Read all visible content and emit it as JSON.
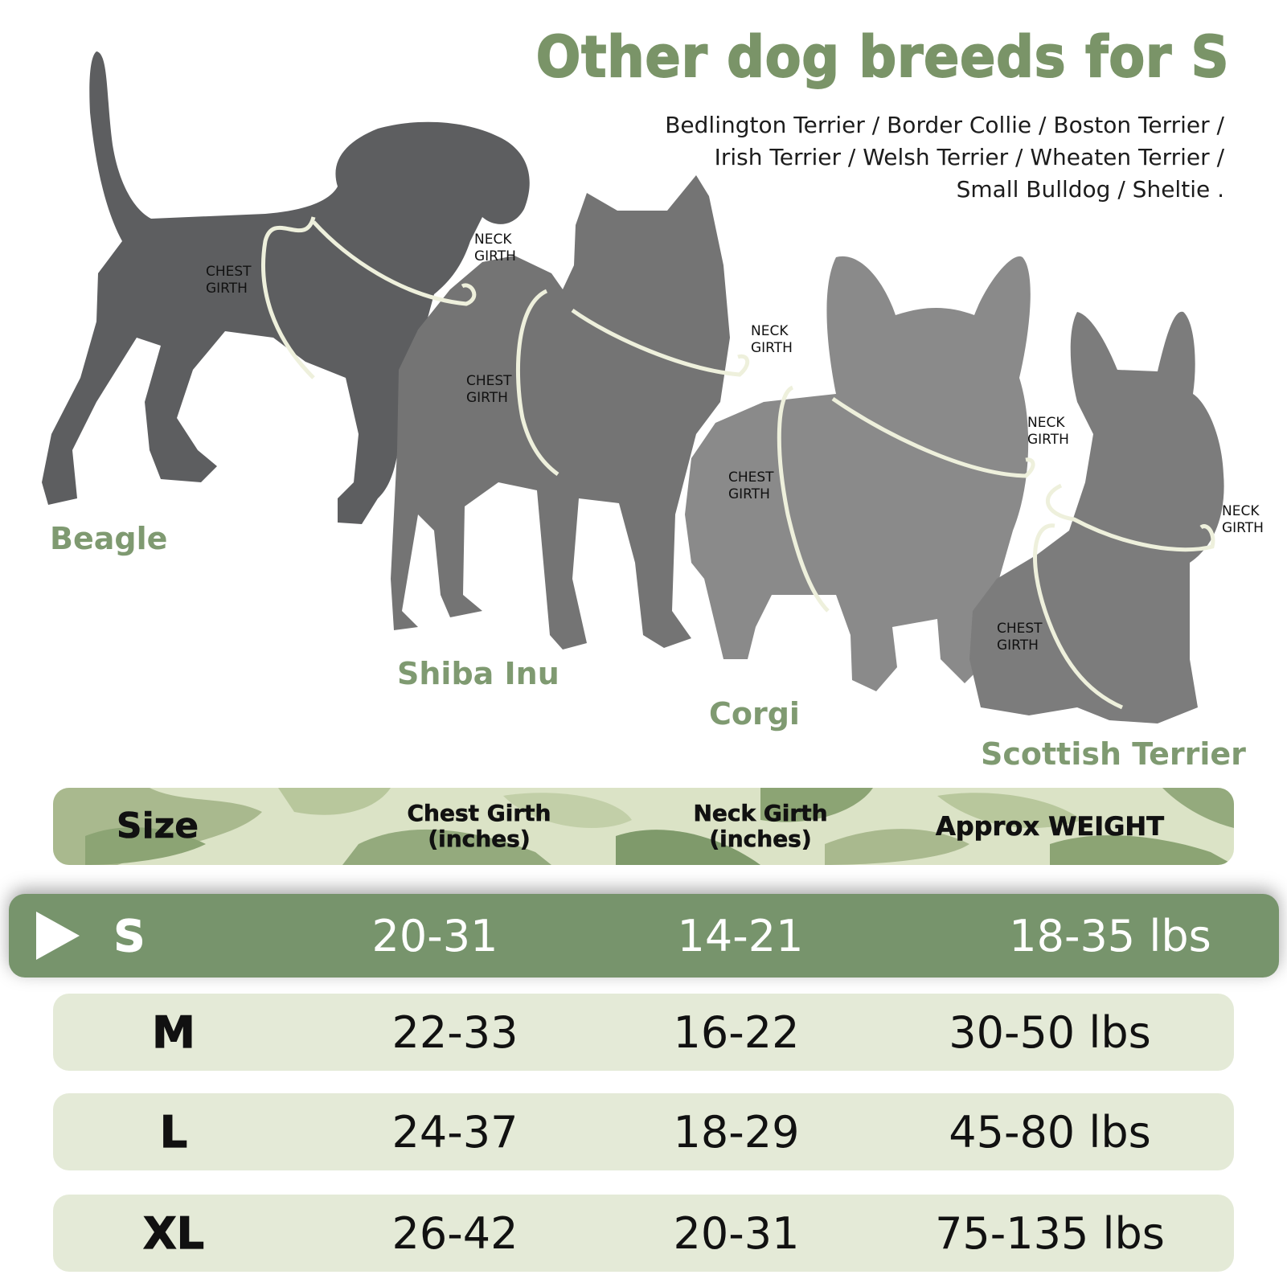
{
  "title": "Other dog breeds for S",
  "breed_list": [
    "Bedlington Terrier / Border Collie / Boston Terrier /",
    "Irish Terrier / Welsh Terrier / Wheaten Terrier /",
    "Small Bulldog / Sheltie ."
  ],
  "dogs": [
    {
      "name": "Beagle",
      "chest": "CHEST\nGIRTH",
      "neck": "NECK\nGIRTH"
    },
    {
      "name": "Shiba Inu",
      "chest": "CHEST\nGIRTH",
      "neck": "NECK\nGIRTH"
    },
    {
      "name": "Corgi",
      "chest": "CHEST\nGIRTH",
      "neck": "NECK\nGIRTH"
    },
    {
      "name": "Scottish Terrier",
      "chest": "CHEST\nGIRTH",
      "neck": "NECK\nGIRTH"
    }
  ],
  "table": {
    "headers": [
      "Size",
      "Chest Girth\n(inches)",
      "Neck Girth\n(inches)",
      "Approx WEIGHT"
    ],
    "rows": [
      {
        "size": "S",
        "chest": "20-31",
        "neck": "14-21",
        "weight": "18-35 lbs",
        "selected": true
      },
      {
        "size": "M",
        "chest": "22-33",
        "neck": "16-22",
        "weight": "30-50 lbs"
      },
      {
        "size": "L",
        "chest": "24-37",
        "neck": "18-29",
        "weight": "45-80 lbs"
      },
      {
        "size": "XL",
        "chest": "26-42",
        "neck": "20-31",
        "weight": "75-135 lbs"
      }
    ]
  },
  "colors": {
    "accent_green": "#7a9468",
    "selected_row": "#77946c",
    "row_bg": "#e4ead7",
    "dog_dark": "#5d5e60",
    "dog_mid": "#747474",
    "dog_light": "#8a8a8a",
    "strap": "#eef0dc"
  }
}
